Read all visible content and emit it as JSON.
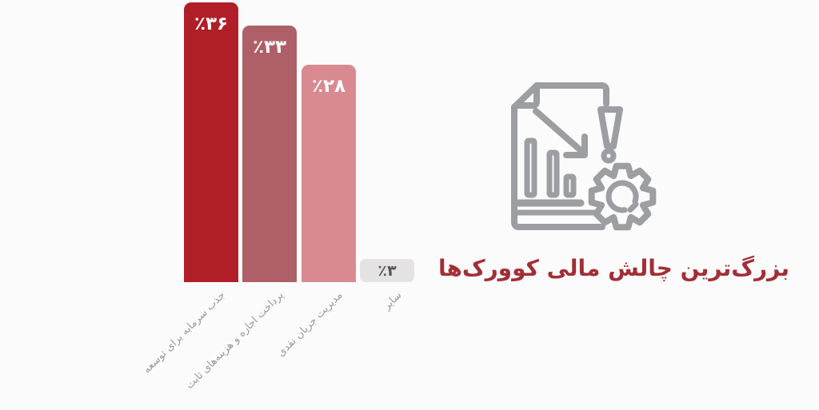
{
  "background_color": "#fcfbfb",
  "title": {
    "text": "بزرگ‌ترین چالش مالی کوورک‌ها",
    "color": "#a22e36"
  },
  "icon": {
    "name": "financial-report-warning-gear-icon",
    "color": "#9c9ea1",
    "parts": [
      "document-with-folded-corner",
      "declining-bar-chart",
      "down-trend-arrow",
      "exclamation-mark",
      "gear"
    ]
  },
  "chart_data": {
    "type": "bar",
    "direction_note": "bars ordered left to right as rendered",
    "categories": [
      "جذب سرمایه برای توسعه",
      "پرداخت اجاره و هزینه‌های ثابت",
      "مدیریت جریان نقدی",
      "سایر"
    ],
    "values": [
      36,
      33,
      28,
      3
    ],
    "value_labels": [
      "٪۳۶",
      "٪۳۳",
      "٪۲۸",
      "٪۳"
    ],
    "bar_colors": [
      "#b01f28",
      "#af5f67",
      "#d98990",
      "#e4e2e2"
    ],
    "value_label_colors": [
      "#ffffff",
      "#ffffff",
      "#ffffff",
      "#58585a"
    ],
    "title": "بزرگ‌ترین چالش مالی کوورک‌ها",
    "xlabel": "",
    "ylabel": "",
    "ylim": [
      0,
      36
    ],
    "grid": false,
    "legend": "none",
    "axis_label_color": "#97999c"
  }
}
